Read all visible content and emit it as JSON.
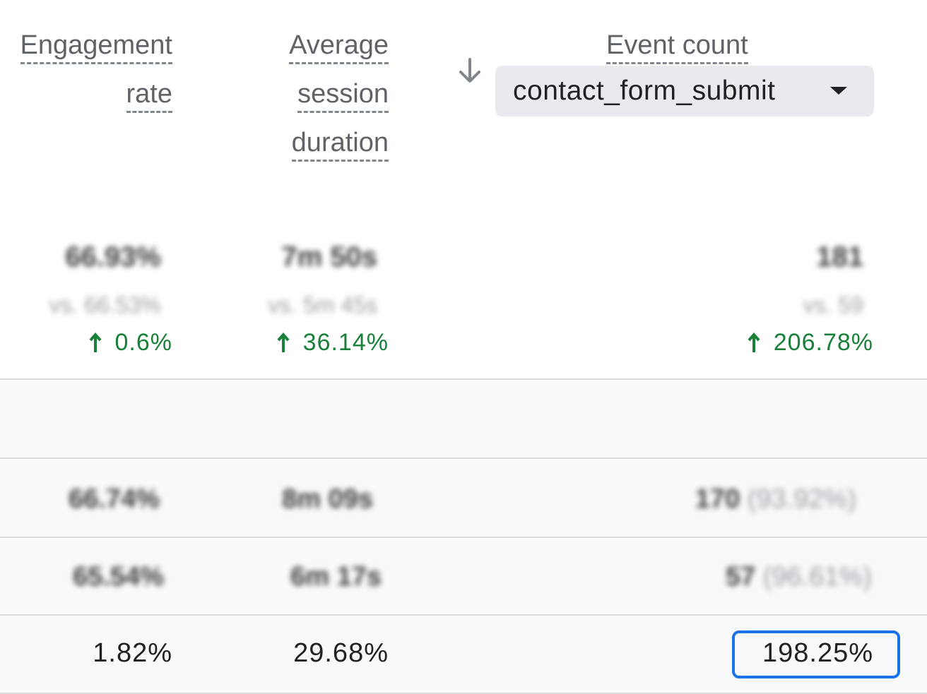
{
  "columns": {
    "engagement_rate": [
      "Engagement",
      "rate"
    ],
    "avg_session_duration": [
      "Average",
      "session",
      "duration"
    ],
    "event_count": [
      "Event count"
    ]
  },
  "sort": {
    "icon": "arrow-down-icon"
  },
  "event_selector": {
    "value": "contact_form_submit",
    "icon": "dropdown-caret-icon"
  },
  "totals": {
    "engagement_rate": {
      "value": "66.93%",
      "compare": "vs. 66.53%",
      "change": "0.6%"
    },
    "avg_session_duration": {
      "value": "7m 50s",
      "compare": "vs. 5m 45s",
      "change": "36.14%"
    },
    "event_count": {
      "value": "181",
      "compare": "vs. 59",
      "change": "206.78%"
    },
    "change_color": "#188038"
  },
  "rows": [
    {
      "engagement_rate": "66.74%",
      "avg_session_duration": "8m 09s",
      "event_count": "170",
      "event_share": "(93.92%)"
    },
    {
      "engagement_rate": "65.54%",
      "avg_session_duration": "6m 17s",
      "event_count": "57",
      "event_share": "(96.61%)"
    },
    {
      "engagement_rate": "1.82%",
      "avg_session_duration": "29.68%",
      "event_count": "198.25%"
    }
  ],
  "highlight_color": "#1a73e8"
}
